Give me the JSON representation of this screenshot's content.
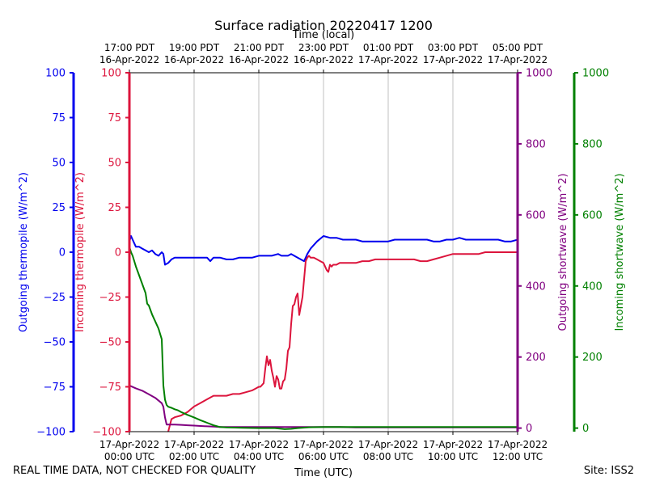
{
  "chart_data": {
    "type": "line",
    "title": "Surface radiation 20220417 1200",
    "top_axis_label": "Time (local)",
    "xlabel": "Time (UTC)",
    "xlim": [
      0,
      12
    ],
    "x_ticks_utc": [
      {
        "x": 0,
        "line1": "17-Apr-2022",
        "line2": "00:00 UTC"
      },
      {
        "x": 2,
        "line1": "17-Apr-2022",
        "line2": "02:00 UTC"
      },
      {
        "x": 4,
        "line1": "17-Apr-2022",
        "line2": "04:00 UTC"
      },
      {
        "x": 6,
        "line1": "17-Apr-2022",
        "line2": "06:00 UTC"
      },
      {
        "x": 8,
        "line1": "17-Apr-2022",
        "line2": "08:00 UTC"
      },
      {
        "x": 10,
        "line1": "17-Apr-2022",
        "line2": "10:00 UTC"
      },
      {
        "x": 12,
        "line1": "17-Apr-2022",
        "line2": "12:00 UTC"
      }
    ],
    "x_ticks_local": [
      {
        "x": 0,
        "line1": "17:00 PDT",
        "line2": "16-Apr-2022"
      },
      {
        "x": 2,
        "line1": "19:00 PDT",
        "line2": "16-Apr-2022"
      },
      {
        "x": 4,
        "line1": "21:00 PDT",
        "line2": "16-Apr-2022"
      },
      {
        "x": 6,
        "line1": "23:00 PDT",
        "line2": "16-Apr-2022"
      },
      {
        "x": 8,
        "line1": "01:00 PDT",
        "line2": "17-Apr-2022"
      },
      {
        "x": 10,
        "line1": "03:00 PDT",
        "line2": "17-Apr-2022"
      },
      {
        "x": 12,
        "line1": "05:00 PDT",
        "line2": "17-Apr-2022"
      }
    ],
    "axes": {
      "outgoing_thermopile": {
        "label": "Outgoing thermopile (W/m^2)",
        "color": "#0000ee",
        "ylim": [
          -100,
          100
        ],
        "ticks": [
          -100,
          -75,
          -50,
          -25,
          0,
          25,
          50,
          75,
          100
        ]
      },
      "incoming_thermopile": {
        "label": "Incoming thermopile (W/m^2)",
        "color": "#dc143c",
        "ylim": [
          -100,
          100
        ],
        "ticks": [
          -100,
          -75,
          -50,
          -25,
          0,
          25,
          50,
          75,
          100
        ]
      },
      "outgoing_shortwave": {
        "label": "Outgoing shortwave (W/m^2)",
        "color": "#800080",
        "ylim": [
          -10,
          1000
        ],
        "ticks": [
          0,
          200,
          400,
          600,
          800,
          1000
        ]
      },
      "incoming_shortwave": {
        "label": "Incoming shortwave (W/m^2)",
        "color": "#008000",
        "ylim": [
          -10,
          1000
        ],
        "ticks": [
          0,
          200,
          400,
          600,
          800,
          1000
        ]
      }
    },
    "grid": true,
    "series": [
      {
        "name": "Outgoing thermopile",
        "axis": "outgoing_thermopile",
        "color": "#0000ee",
        "x": [
          0,
          0.05,
          0.1,
          0.15,
          0.2,
          0.3,
          0.4,
          0.5,
          0.6,
          0.7,
          0.8,
          0.9,
          1.0,
          1.05,
          1.1,
          1.2,
          1.3,
          1.4,
          1.5,
          1.6,
          1.8,
          2.0,
          2.2,
          2.4,
          2.5,
          2.6,
          2.8,
          3.0,
          3.2,
          3.4,
          3.6,
          3.8,
          4.0,
          4.2,
          4.4,
          4.6,
          4.7,
          4.8,
          4.9,
          5.0,
          5.2,
          5.4,
          5.5,
          5.6,
          5.8,
          6.0,
          6.2,
          6.4,
          6.6,
          6.8,
          7.0,
          7.2,
          7.4,
          7.6,
          7.8,
          8.0,
          8.2,
          8.4,
          8.6,
          8.8,
          9.0,
          9.2,
          9.4,
          9.6,
          9.8,
          10.0,
          10.2,
          10.4,
          10.6,
          10.8,
          11.0,
          11.2,
          11.4,
          11.6,
          11.8,
          12.0
        ],
        "values": [
          6,
          9,
          7,
          5,
          3,
          3,
          2,
          1,
          0,
          1,
          -1,
          -2,
          0,
          -1,
          -7,
          -6,
          -4,
          -3,
          -3,
          -3,
          -3,
          -3,
          -3,
          -3,
          -5,
          -3,
          -3,
          -4,
          -4,
          -3,
          -3,
          -3,
          -2,
          -2,
          -2,
          -1,
          -2,
          -2,
          -2,
          -1,
          -3,
          -5,
          -1,
          2,
          6,
          9,
          8,
          8,
          7,
          7,
          7,
          6,
          6,
          6,
          6,
          6,
          7,
          7,
          7,
          7,
          7,
          7,
          6,
          6,
          7,
          7,
          8,
          7,
          7,
          7,
          7,
          7,
          7,
          6,
          6,
          7
        ]
      },
      {
        "name": "Incoming thermopile",
        "axis": "incoming_thermopile",
        "color": "#dc143c",
        "x": [
          1.2,
          1.3,
          1.4,
          1.6,
          1.8,
          2.0,
          2.2,
          2.4,
          2.6,
          2.8,
          3.0,
          3.2,
          3.4,
          3.6,
          3.8,
          3.9,
          4.0,
          4.05,
          4.1,
          4.15,
          4.2,
          4.25,
          4.3,
          4.35,
          4.4,
          4.45,
          4.5,
          4.55,
          4.6,
          4.65,
          4.7,
          4.75,
          4.8,
          4.85,
          4.9,
          4.95,
          5.0,
          5.05,
          5.1,
          5.15,
          5.2,
          5.25,
          5.3,
          5.35,
          5.4,
          5.45,
          5.5,
          5.55,
          5.6,
          5.7,
          5.8,
          5.9,
          6.0,
          6.1,
          6.15,
          6.2,
          6.25,
          6.3,
          6.4,
          6.5,
          6.6,
          6.8,
          7.0,
          7.2,
          7.4,
          7.6,
          7.8,
          8.0,
          8.2,
          8.4,
          8.6,
          8.8,
          9.0,
          9.2,
          9.4,
          9.6,
          9.8,
          10.0,
          10.2,
          10.4,
          10.6,
          10.8,
          11.0,
          11.2,
          11.4,
          11.6,
          11.8,
          12.0
        ],
        "values": [
          -100,
          -93,
          -92,
          -91,
          -89,
          -86,
          -84,
          -82,
          -80,
          -80,
          -80,
          -79,
          -79,
          -78,
          -77,
          -76,
          -75,
          -75,
          -74,
          -73,
          -65,
          -58,
          -63,
          -60,
          -66,
          -70,
          -75,
          -69,
          -71,
          -76,
          -76,
          -72,
          -71,
          -65,
          -55,
          -53,
          -40,
          -30,
          -29,
          -25,
          -23,
          -35,
          -30,
          -25,
          -15,
          -5,
          -3,
          -2,
          -3,
          -3,
          -4,
          -5,
          -6,
          -10,
          -11,
          -7,
          -8,
          -7,
          -7,
          -6,
          -6,
          -6,
          -6,
          -5,
          -5,
          -4,
          -4,
          -4,
          -4,
          -4,
          -4,
          -4,
          -5,
          -5,
          -4,
          -3,
          -2,
          -1,
          -1,
          -1,
          -1,
          -1,
          0,
          0,
          0,
          0,
          0,
          0
        ]
      },
      {
        "name": "Outgoing shortwave",
        "axis": "outgoing_shortwave",
        "color": "#800080",
        "x": [
          0,
          0.2,
          0.4,
          0.6,
          0.8,
          1.0,
          1.05,
          1.1,
          1.15,
          1.2,
          1.4,
          1.6,
          1.8,
          2.0,
          2.2,
          2.4,
          2.6,
          2.8,
          3.0,
          3.5,
          4.0,
          4.5,
          5.0,
          5.5,
          6.0,
          6.5,
          7.0,
          7.5,
          8.0,
          8.5,
          9.0,
          9.5,
          10.0,
          10.5,
          11.0,
          11.5,
          12.0
        ],
        "values": [
          120,
          112,
          105,
          95,
          85,
          70,
          60,
          30,
          10,
          10,
          10,
          9,
          8,
          7,
          6,
          5,
          4,
          3,
          3,
          3,
          3,
          3,
          3,
          3,
          3,
          3,
          2,
          2,
          2,
          2,
          2,
          2,
          2,
          2,
          2,
          2,
          2
        ]
      },
      {
        "name": "Incoming shortwave",
        "axis": "incoming_shortwave",
        "color": "#008000",
        "x": [
          0,
          0.05,
          0.1,
          0.15,
          0.2,
          0.3,
          0.4,
          0.5,
          0.55,
          0.6,
          0.7,
          0.8,
          0.9,
          1.0,
          1.05,
          1.1,
          1.15,
          1.2,
          1.3,
          1.4,
          1.5,
          1.6,
          1.8,
          2.0,
          2.2,
          2.4,
          2.6,
          2.8,
          3.0,
          3.5,
          4.0,
          4.5,
          4.8,
          5.0,
          5.2,
          5.5,
          6.0,
          7.0,
          8.0,
          9.0,
          10.0,
          11.0,
          12.0
        ],
        "values": [
          510,
          495,
          485,
          470,
          455,
          430,
          405,
          380,
          350,
          345,
          320,
          300,
          280,
          250,
          120,
          80,
          65,
          60,
          57,
          53,
          50,
          45,
          37,
          30,
          22,
          15,
          8,
          3,
          2,
          1,
          0,
          0,
          -3,
          -2,
          0,
          2,
          3,
          3,
          3,
          3,
          3,
          3,
          3
        ]
      }
    ]
  },
  "footer": {
    "quality_note": "REAL TIME DATA, NOT CHECKED FOR QUALITY",
    "site": "Site: ISS2"
  }
}
